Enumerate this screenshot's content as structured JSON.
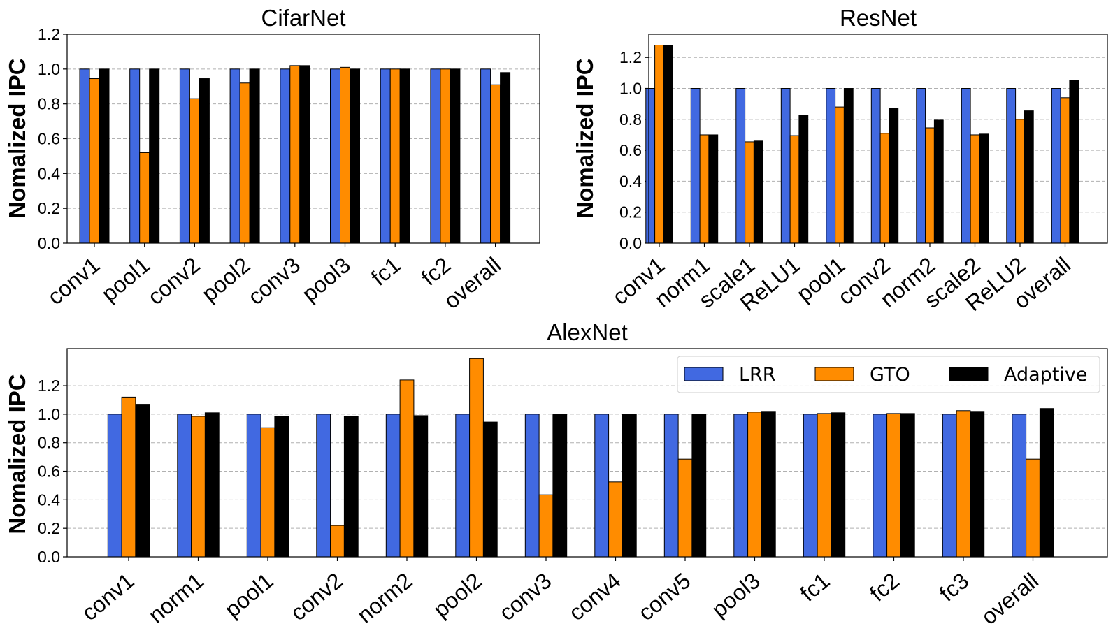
{
  "colors": {
    "LRR": "#4169E1",
    "GTO": "#FF8C00",
    "Adaptive": "#000000"
  },
  "legend": {
    "placement": "top-right",
    "entries": [
      "LRR",
      "GTO",
      "Adaptive"
    ]
  },
  "chart_data": [
    {
      "type": "bar",
      "title": "CifarNet",
      "ylabel": "Nomalized IPC",
      "ylim": [
        0,
        1.2
      ],
      "yticks": [
        "0.0",
        "0.2",
        "0.4",
        "0.6",
        "0.8",
        "1.0",
        "1.2"
      ],
      "grid": true,
      "categories": [
        "conv1",
        "pool1",
        "conv2",
        "pool2",
        "conv3",
        "pool3",
        "fc1",
        "fc2",
        "overall"
      ],
      "series": [
        {
          "name": "LRR",
          "values": [
            1.0,
            1.0,
            1.0,
            1.0,
            1.0,
            1.0,
            1.0,
            1.0,
            1.0
          ]
        },
        {
          "name": "GTO",
          "values": [
            0.945,
            0.52,
            0.83,
            0.92,
            1.02,
            1.01,
            1.0,
            1.0,
            0.91
          ]
        },
        {
          "name": "Adaptive",
          "values": [
            1.0,
            1.0,
            0.945,
            1.0,
            1.02,
            1.0,
            1.0,
            1.0,
            0.98
          ]
        }
      ]
    },
    {
      "type": "bar",
      "title": "ResNet",
      "ylabel": "Nomalized IPC",
      "ylim": [
        0,
        1.35
      ],
      "yticks": [
        "0.0",
        "0.2",
        "0.4",
        "0.6",
        "0.8",
        "1.0",
        "1.2"
      ],
      "grid": true,
      "categories": [
        "conv1",
        "norm1",
        "scale1",
        "ReLU1",
        "pool1",
        "conv2",
        "norm2",
        "scale2",
        "ReLU2",
        "overall"
      ],
      "series": [
        {
          "name": "LRR",
          "values": [
            1.0,
            1.0,
            1.0,
            1.0,
            1.0,
            1.0,
            1.0,
            1.0,
            1.0,
            1.0
          ]
        },
        {
          "name": "GTO",
          "values": [
            1.28,
            0.7,
            0.655,
            0.695,
            0.88,
            0.71,
            0.745,
            0.7,
            0.8,
            0.94
          ]
        },
        {
          "name": "Adaptive",
          "values": [
            1.28,
            0.7,
            0.66,
            0.825,
            1.0,
            0.87,
            0.795,
            0.705,
            0.855,
            1.05
          ]
        }
      ]
    },
    {
      "type": "bar",
      "title": "AlexNet",
      "ylabel": "Nomalized IPC",
      "ylim": [
        0,
        1.46
      ],
      "yticks": [
        "0.0",
        "0.2",
        "0.4",
        "0.6",
        "0.8",
        "1.0",
        "1.2"
      ],
      "grid": true,
      "categories": [
        "conv1",
        "norm1",
        "pool1",
        "conv2",
        "norm2",
        "pool2",
        "conv3",
        "conv4",
        "conv5",
        "pool3",
        "fc1",
        "fc2",
        "fc3",
        "overall"
      ],
      "series": [
        {
          "name": "LRR",
          "values": [
            1.0,
            1.0,
            1.0,
            1.0,
            1.0,
            1.0,
            1.0,
            1.0,
            1.0,
            1.0,
            1.0,
            1.0,
            1.0,
            1.0
          ]
        },
        {
          "name": "GTO",
          "values": [
            1.12,
            0.985,
            0.905,
            0.22,
            1.24,
            1.39,
            0.435,
            0.525,
            0.685,
            1.015,
            1.005,
            1.005,
            1.025,
            0.685
          ]
        },
        {
          "name": "Adaptive",
          "values": [
            1.07,
            1.01,
            0.985,
            0.985,
            0.99,
            0.945,
            1.0,
            1.0,
            1.0,
            1.02,
            1.01,
            1.005,
            1.02,
            1.04
          ]
        }
      ]
    }
  ]
}
